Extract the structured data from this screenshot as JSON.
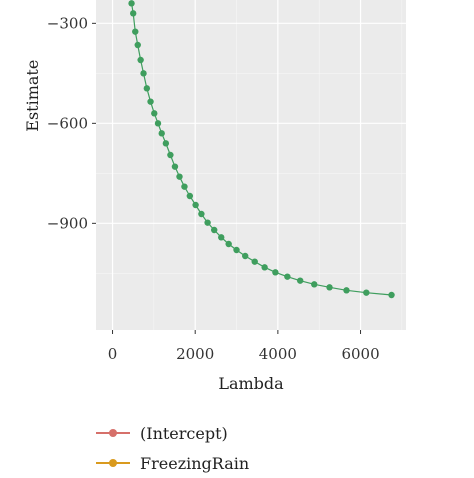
{
  "chart_data": {
    "type": "line",
    "title": "",
    "xlabel": "Lambda",
    "ylabel": "Estimate",
    "xlim": [
      -400,
      7100
    ],
    "ylim": [
      -1220,
      -230
    ],
    "xticks": [
      0,
      2000,
      4000,
      6000
    ],
    "yticks": [
      -300,
      -600,
      -900
    ],
    "xtick_labels": [
      "0",
      "2000",
      "4000",
      "6000"
    ],
    "ytick_labels": [
      "−300",
      "−600",
      "−900"
    ],
    "grid": true,
    "legend_position": "bottom-left",
    "series": [
      {
        "name": "(Intercept)",
        "color": "#d6706a",
        "x": [],
        "y": []
      },
      {
        "name": "FreezingRain",
        "color": "#d99a1e",
        "x": [],
        "y": []
      },
      {
        "name": "",
        "color": "#3f9e5e",
        "x": [
          460,
          500,
          550,
          610,
          680,
          750,
          830,
          920,
          1010,
          1100,
          1190,
          1290,
          1400,
          1510,
          1620,
          1740,
          1870,
          2010,
          2150,
          2300,
          2460,
          2630,
          2810,
          3000,
          3210,
          3440,
          3680,
          3940,
          4230,
          4540,
          4880,
          5250,
          5660,
          6140,
          6750
        ],
        "y": [
          -240,
          -270,
          -325,
          -365,
          -410,
          -450,
          -495,
          -535,
          -570,
          -600,
          -630,
          -660,
          -695,
          -730,
          -760,
          -790,
          -818,
          -845,
          -872,
          -898,
          -920,
          -942,
          -962,
          -980,
          -998,
          -1015,
          -1032,
          -1047,
          -1060,
          -1072,
          -1083,
          -1092,
          -1101,
          -1108,
          -1115
        ]
      }
    ]
  }
}
